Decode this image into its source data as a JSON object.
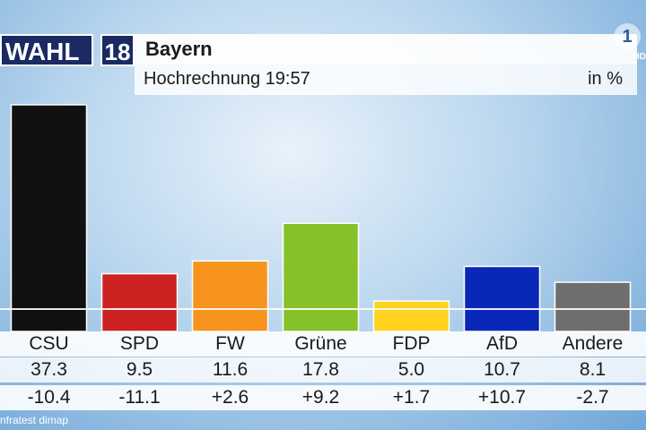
{
  "header": {
    "brand_word": "WAHL",
    "brand_year": "18",
    "region": "Bayern",
    "subtitle": "Hochrechnung 19:57",
    "unit": "in %",
    "broadcaster_logo": "1",
    "hd_label": "HD"
  },
  "source": "nfratest dimap",
  "colors": {
    "background": "#9cc4e8",
    "header_navy": "#1b2a63"
  },
  "chart_data": {
    "type": "bar",
    "categories": [
      "CSU",
      "SPD",
      "FW",
      "Grüne",
      "FDP",
      "AfD",
      "Andere"
    ],
    "values": [
      37.3,
      9.5,
      11.6,
      17.8,
      5.0,
      10.7,
      8.1
    ],
    "value_labels": [
      "37.3",
      "9.5",
      "11.6",
      "17.8",
      "5.0",
      "10.7",
      "8.1"
    ],
    "changes": [
      "-10.4",
      "-11.1",
      "+2.6",
      "+9.2",
      "+1.7",
      "+10.7",
      "-2.7"
    ],
    "colors": [
      "#111111",
      "#cc2222",
      "#f7941d",
      "#86c12a",
      "#ffd21f",
      "#0a28b8",
      "#6e6e6e"
    ],
    "title": "Bayern",
    "subtitle": "Hochrechnung 19:57",
    "unit": "in %",
    "grid": false,
    "legend": "none"
  }
}
